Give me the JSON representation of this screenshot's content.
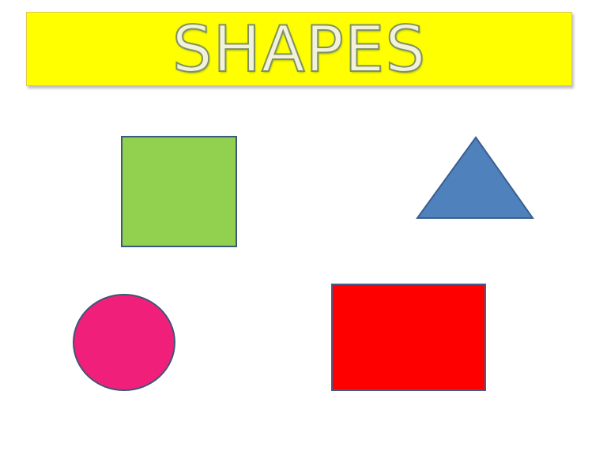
{
  "title": {
    "text": "SHAPES",
    "banner_color": "#ffff00"
  },
  "shapes": {
    "square": {
      "kind": "square",
      "color": "#92d050"
    },
    "triangle": {
      "kind": "triangle",
      "color": "#4f81bd"
    },
    "circle": {
      "kind": "circle",
      "color": "#f0207a"
    },
    "rectangle": {
      "kind": "rectangle",
      "color": "#ff0000"
    }
  }
}
